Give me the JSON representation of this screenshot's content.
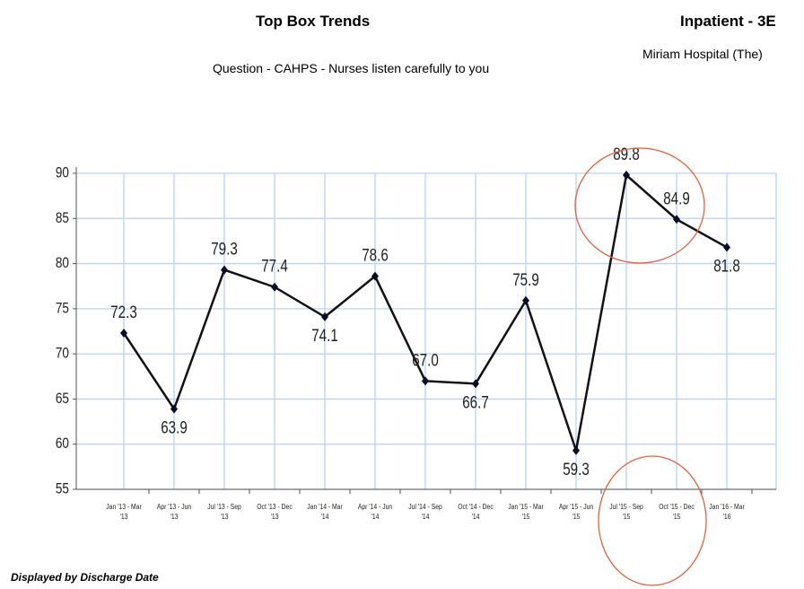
{
  "chart_data": {
    "type": "line",
    "title": "Top Box Trends",
    "unit_title": "Inpatient - 3E",
    "facility": "Miriam Hospital (The)",
    "subtitle": "Question - CAHPS - Nurses listen carefully to you",
    "footer": "Displayed by Discharge Date",
    "categories": [
      "Jan '13 - Mar '13",
      "Apr '13 - Jun '13",
      "Jul '13 - Sep '13",
      "Oct '13 - Dec '13",
      "Jan '14 - Mar '14",
      "Apr '14 - Jun '14",
      "Jul '14 - Sep '14",
      "Oct '14 - Dec '14",
      "Jan '15 - Mar '15",
      "Apr '15 - Jun '15",
      "Jul '15 - Sep '15",
      "Oct '15 - Dec '15",
      "Jan '16 - Mar '16"
    ],
    "values": [
      72.3,
      63.9,
      79.3,
      77.4,
      74.1,
      78.6,
      67.0,
      66.7,
      75.9,
      59.3,
      89.8,
      84.9,
      81.8
    ],
    "value_labels": [
      "72.3",
      "63.9",
      "79.3",
      "77.4",
      "74.1",
      "78.6",
      "67.0",
      "66.7",
      "75.9",
      "59.3",
      "89.8",
      "84.9",
      "81.8"
    ],
    "color": "#111111",
    "ylim": [
      55,
      90
    ],
    "yticks": [
      55,
      60,
      65,
      70,
      75,
      80,
      85,
      90
    ],
    "grid": true
  }
}
